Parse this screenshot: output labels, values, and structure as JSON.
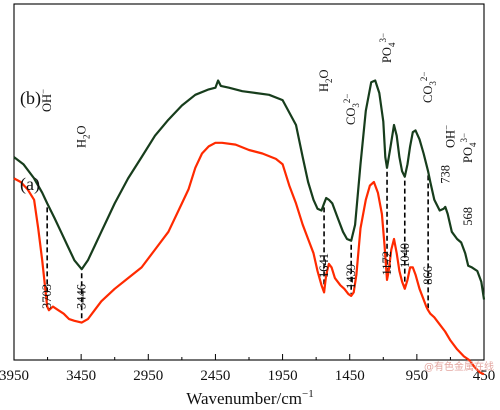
{
  "chart_data": {
    "type": "line",
    "xlabel": "Wavenumber/cm",
    "xlabel_sup": "−1",
    "xlim": [
      3950,
      450
    ],
    "x_ticks": [
      "3950",
      "3450",
      "2950",
      "2450",
      "1950",
      "1450",
      "950",
      "450"
    ],
    "y_ticks_shown": false,
    "series": [
      {
        "name": "(b)",
        "color": "#173d1c",
        "points": [
          [
            3950,
            0.43
          ],
          [
            3880,
            0.45
          ],
          [
            3800,
            0.49
          ],
          [
            3740,
            0.53
          ],
          [
            3703,
            0.56
          ],
          [
            3650,
            0.6
          ],
          [
            3600,
            0.64
          ],
          [
            3550,
            0.68
          ],
          [
            3500,
            0.72
          ],
          [
            3446,
            0.745
          ],
          [
            3400,
            0.72
          ],
          [
            3350,
            0.68
          ],
          [
            3300,
            0.64
          ],
          [
            3250,
            0.6
          ],
          [
            3200,
            0.56
          ],
          [
            3100,
            0.49
          ],
          [
            3000,
            0.43
          ],
          [
            2900,
            0.37
          ],
          [
            2800,
            0.325
          ],
          [
            2700,
            0.285
          ],
          [
            2600,
            0.255
          ],
          [
            2500,
            0.24
          ],
          [
            2450,
            0.235
          ],
          [
            2430,
            0.215
          ],
          [
            2410,
            0.23
          ],
          [
            2350,
            0.235
          ],
          [
            2250,
            0.245
          ],
          [
            2150,
            0.25
          ],
          [
            2050,
            0.255
          ],
          [
            1950,
            0.27
          ],
          [
            1850,
            0.34
          ],
          [
            1800,
            0.43
          ],
          [
            1760,
            0.5
          ],
          [
            1720,
            0.55
          ],
          [
            1690,
            0.575
          ],
          [
            1660,
            0.58
          ],
          [
            1641,
            0.56
          ],
          [
            1625,
            0.545
          ],
          [
            1605,
            0.55
          ],
          [
            1580,
            0.56
          ],
          [
            1540,
            0.6
          ],
          [
            1500,
            0.64
          ],
          [
            1470,
            0.66
          ],
          [
            1439,
            0.665
          ],
          [
            1410,
            0.62
          ],
          [
            1370,
            0.45
          ],
          [
            1330,
            0.3
          ],
          [
            1290,
            0.22
          ],
          [
            1260,
            0.215
          ],
          [
            1230,
            0.25
          ],
          [
            1200,
            0.33
          ],
          [
            1185,
            0.43
          ],
          [
            1172,
            0.46
          ],
          [
            1150,
            0.41
          ],
          [
            1120,
            0.34
          ],
          [
            1100,
            0.37
          ],
          [
            1080,
            0.43
          ],
          [
            1060,
            0.47
          ],
          [
            1040,
            0.485
          ],
          [
            1020,
            0.45
          ],
          [
            1000,
            0.4
          ],
          [
            980,
            0.36
          ],
          [
            960,
            0.355
          ],
          [
            930,
            0.38
          ],
          [
            900,
            0.42
          ],
          [
            880,
            0.45
          ],
          [
            866,
            0.47
          ],
          [
            850,
            0.5
          ],
          [
            820,
            0.55
          ],
          [
            780,
            0.58
          ],
          [
            750,
            0.575
          ],
          [
            738,
            0.57
          ],
          [
            720,
            0.59
          ],
          [
            690,
            0.64
          ],
          [
            650,
            0.66
          ],
          [
            620,
            0.67
          ],
          [
            590,
            0.7
          ],
          [
            568,
            0.735
          ],
          [
            540,
            0.74
          ],
          [
            500,
            0.75
          ],
          [
            470,
            0.78
          ],
          [
            450,
            0.83
          ]
        ]
      },
      {
        "name": "(a)",
        "color": "#ff2a00",
        "points": [
          [
            3950,
            0.49
          ],
          [
            3900,
            0.5
          ],
          [
            3850,
            0.52
          ],
          [
            3800,
            0.55
          ],
          [
            3770,
            0.63
          ],
          [
            3740,
            0.72
          ],
          [
            3720,
            0.79
          ],
          [
            3703,
            0.85
          ],
          [
            3690,
            0.86
          ],
          [
            3660,
            0.85
          ],
          [
            3620,
            0.86
          ],
          [
            3580,
            0.87
          ],
          [
            3540,
            0.885
          ],
          [
            3500,
            0.89
          ],
          [
            3446,
            0.895
          ],
          [
            3400,
            0.885
          ],
          [
            3350,
            0.86
          ],
          [
            3300,
            0.835
          ],
          [
            3200,
            0.8
          ],
          [
            3100,
            0.77
          ],
          [
            3000,
            0.74
          ],
          [
            2900,
            0.69
          ],
          [
            2800,
            0.64
          ],
          [
            2700,
            0.56
          ],
          [
            2650,
            0.52
          ],
          [
            2600,
            0.46
          ],
          [
            2550,
            0.42
          ],
          [
            2500,
            0.4
          ],
          [
            2450,
            0.39
          ],
          [
            2400,
            0.39
          ],
          [
            2300,
            0.395
          ],
          [
            2200,
            0.41
          ],
          [
            2100,
            0.42
          ],
          [
            2000,
            0.435
          ],
          [
            1950,
            0.45
          ],
          [
            1900,
            0.51
          ],
          [
            1850,
            0.56
          ],
          [
            1800,
            0.62
          ],
          [
            1760,
            0.66
          ],
          [
            1720,
            0.7
          ],
          [
            1690,
            0.75
          ],
          [
            1660,
            0.79
          ],
          [
            1641,
            0.81
          ],
          [
            1625,
            0.76
          ],
          [
            1605,
            0.73
          ],
          [
            1585,
            0.74
          ],
          [
            1560,
            0.77
          ],
          [
            1520,
            0.79
          ],
          [
            1490,
            0.8
          ],
          [
            1460,
            0.815
          ],
          [
            1439,
            0.82
          ],
          [
            1420,
            0.81
          ],
          [
            1400,
            0.76
          ],
          [
            1370,
            0.63
          ],
          [
            1330,
            0.55
          ],
          [
            1300,
            0.51
          ],
          [
            1270,
            0.5
          ],
          [
            1240,
            0.53
          ],
          [
            1210,
            0.59
          ],
          [
            1190,
            0.68
          ],
          [
            1172,
            0.775
          ],
          [
            1160,
            0.75
          ],
          [
            1140,
            0.69
          ],
          [
            1120,
            0.66
          ],
          [
            1100,
            0.7
          ],
          [
            1080,
            0.75
          ],
          [
            1060,
            0.78
          ],
          [
            1040,
            0.8
          ],
          [
            1020,
            0.775
          ],
          [
            1000,
            0.74
          ],
          [
            980,
            0.74
          ],
          [
            960,
            0.76
          ],
          [
            930,
            0.8
          ],
          [
            900,
            0.83
          ],
          [
            880,
            0.85
          ],
          [
            866,
            0.86
          ],
          [
            850,
            0.87
          ],
          [
            820,
            0.88
          ],
          [
            780,
            0.9
          ],
          [
            740,
            0.92
          ],
          [
            700,
            0.945
          ],
          [
            650,
            0.97
          ],
          [
            600,
            0.99
          ],
          [
            560,
            1.0
          ],
          [
            520,
            1.02
          ],
          [
            480,
            1.035
          ],
          [
            450,
            1.04
          ]
        ]
      }
    ],
    "peak_markers": [
      {
        "x": 3703,
        "label": "3703"
      },
      {
        "x": 3446,
        "label": "3446"
      },
      {
        "x": 1641,
        "label": "1641"
      },
      {
        "x": 1439,
        "label": "1439"
      },
      {
        "x": 1172,
        "label": "1172"
      },
      {
        "x": 1040,
        "label": "1040"
      },
      {
        "x": 866,
        "label": "866"
      },
      {
        "x": 738,
        "label": "738"
      },
      {
        "x": 568,
        "label": "568"
      }
    ],
    "band_assignments": [
      {
        "x": 3703,
        "label": "OH",
        "sup": "−"
      },
      {
        "x": 3446,
        "label": "H",
        "sub": "2",
        "tail": "O"
      },
      {
        "x": 1641,
        "label": "H",
        "sub": "2",
        "tail": "O"
      },
      {
        "x": 1439,
        "label": "CO",
        "sub": "3",
        "sup": "2−"
      },
      {
        "x": 1172,
        "label": "PO",
        "sub": "4",
        "sup": "3−"
      },
      {
        "x": 866,
        "label": "CO",
        "sub": "3",
        "sup": "2−"
      },
      {
        "x": 738,
        "label": "OH",
        "sup": "−"
      },
      {
        "x": 568,
        "label": "PO",
        "sub": "4",
        "sup": "3−"
      }
    ],
    "grid": false,
    "legend": "none"
  },
  "watermark": "@有色金属在线"
}
